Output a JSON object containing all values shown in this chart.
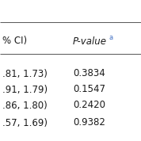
{
  "col1_header": "% CI)",
  "col2_header": "P-value",
  "col2_superscript": "a",
  "rows": [
    {
      "ci_end": ".81, 1.73)",
      "pvalue": "0.3834"
    },
    {
      "ci_end": ".91, 1.79)",
      "pvalue": "0.1547"
    },
    {
      "ci_end": ".86, 1.80)",
      "pvalue": "0.2420"
    },
    {
      "ci_end": ".57, 1.69)",
      "pvalue": "0.9382"
    }
  ],
  "bg_color": "#ffffff",
  "text_color": "#1a1a1a",
  "superscript_color": "#4472c4",
  "font_size": 8.5,
  "header_font_size": 8.5,
  "line_color": "#555555",
  "line_width": 0.7
}
